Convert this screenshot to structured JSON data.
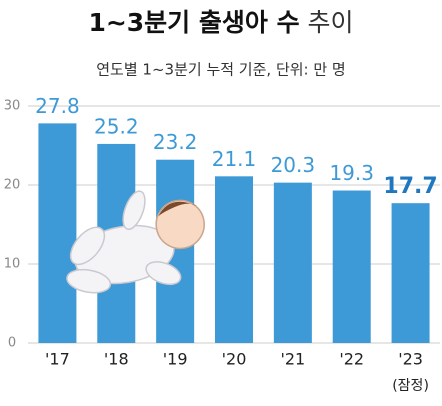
{
  "chart_data": {
    "type": "bar",
    "title": {
      "main": "1~3분기 출생아 수",
      "suffix": "추이"
    },
    "subtitle": "연도별 1~3분기 누적 기준, 단위: 만 명",
    "categories": [
      "'17",
      "'18",
      "'19",
      "'20",
      "'21",
      "'22",
      "'23"
    ],
    "category_note": {
      "index": 6,
      "text": "(잠정)"
    },
    "values": [
      27.8,
      25.2,
      23.2,
      21.1,
      20.3,
      19.3,
      17.7
    ],
    "color": "#3d9ad6",
    "ylim": [
      0,
      30
    ],
    "yticks": [
      0,
      10,
      20,
      30
    ],
    "grid": true
  }
}
